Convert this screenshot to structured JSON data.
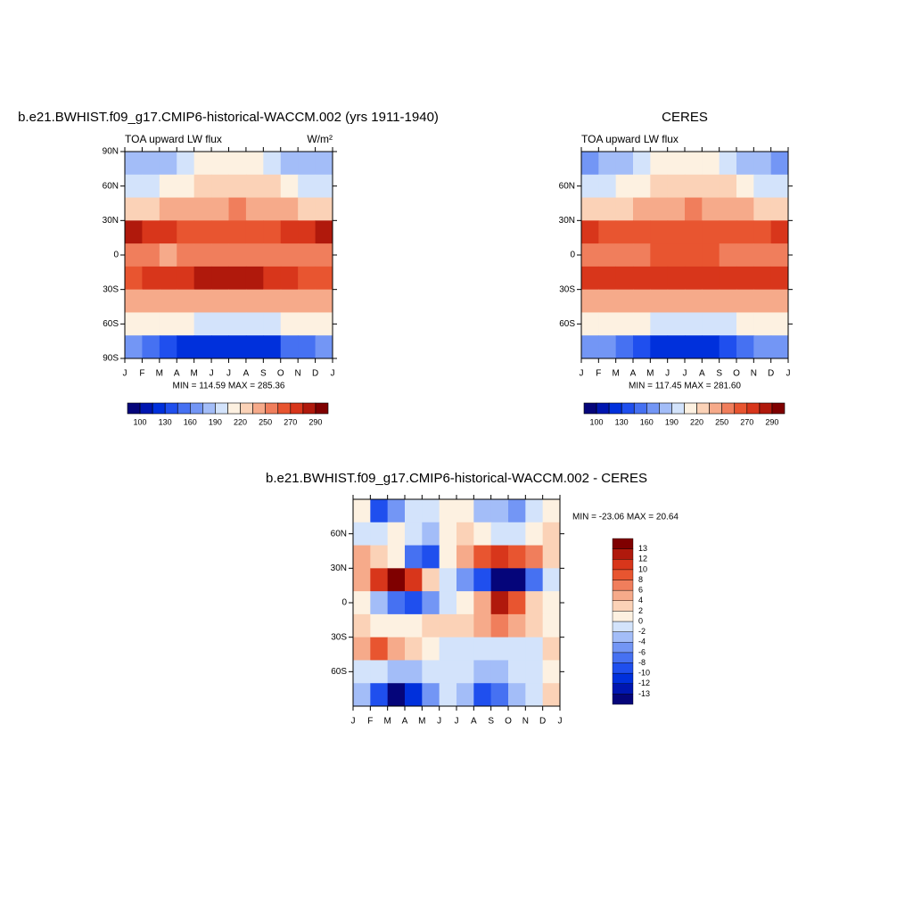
{
  "chart_data": [
    {
      "type": "contour",
      "title": "b.e21.BWHIST.f09_g17.CMIP6-historical-WACCM.002 (yrs 1911-1940)",
      "left_string": "TOA upward LW flux",
      "right_string": "W/m²",
      "min_max_label": "MIN = 114.59 MAX = 285.36",
      "categories": [
        "J",
        "F",
        "M",
        "A",
        "M",
        "J",
        "J",
        "A",
        "S",
        "O",
        "N",
        "D",
        "J"
      ],
      "lat": [
        80,
        60,
        40,
        20,
        0,
        -20,
        -40,
        -60,
        -80
      ],
      "ylim": [
        -90,
        90
      ],
      "yticks": [
        {
          "value": 90,
          "label": "90N"
        },
        {
          "value": 60,
          "label": "60N"
        },
        {
          "value": 30,
          "label": "30N"
        },
        0,
        {
          "value": -30,
          "label": "30S"
        },
        {
          "value": -60,
          "label": "60S"
        },
        {
          "value": -90,
          "label": "90S"
        }
      ],
      "z": [
        [
          175,
          178,
          185,
          195,
          205,
          212,
          215,
          210,
          200,
          188,
          178,
          175
        ],
        [
          200,
          202,
          208,
          215,
          222,
          228,
          230,
          228,
          220,
          210,
          203,
          200
        ],
        [
          232,
          233,
          236,
          240,
          244,
          248,
          250,
          248,
          244,
          238,
          234,
          232
        ],
        [
          280,
          278,
          272,
          268,
          264,
          262,
          262,
          263,
          266,
          270,
          276,
          280
        ],
        [
          252,
          250,
          248,
          250,
          254,
          258,
          258,
          256,
          254,
          252,
          252,
          252
        ],
        [
          268,
          270,
          272,
          276,
          282,
          286,
          286,
          284,
          278,
          272,
          268,
          266
        ],
        [
          244,
          245,
          246,
          245,
          243,
          242,
          242,
          243,
          244,
          246,
          246,
          245
        ],
        [
          210,
          210,
          208,
          205,
          200,
          196,
          195,
          196,
          200,
          205,
          208,
          210
        ],
        [
          165,
          155,
          140,
          128,
          120,
          116,
          115,
          118,
          128,
          145,
          158,
          165
        ]
      ],
      "levels": [
        100,
        115,
        130,
        145,
        160,
        175,
        190,
        205,
        220,
        235,
        250,
        260,
        270,
        280,
        290
      ],
      "colors": [
        "#05057a",
        "#0016b0",
        "#0030dc",
        "#1f4fee",
        "#4671f2",
        "#7396f5",
        "#a3bdf8",
        "#d3e3fb",
        "#fdf1e1",
        "#fbd2b7",
        "#f6aa8a",
        "#f07e5c",
        "#e85530",
        "#d8361b",
        "#b0190c",
        "#7f0000"
      ],
      "labelbar": "horizontal"
    },
    {
      "type": "contour",
      "title": "CERES",
      "left_string": "TOA upward LW flux",
      "min_max_label": "MIN = 117.45 MAX = 281.60",
      "categories": [
        "J",
        "F",
        "M",
        "A",
        "M",
        "J",
        "J",
        "A",
        "S",
        "O",
        "N",
        "D",
        "J"
      ],
      "lat": [
        80,
        60,
        40,
        20,
        0,
        -20,
        -40,
        -60,
        -80
      ],
      "ylim": [
        -90,
        90
      ],
      "yticks": [
        {
          "value": 60,
          "label": "60N"
        },
        {
          "value": 30,
          "label": "30N"
        },
        0,
        {
          "value": -30,
          "label": "30S"
        },
        {
          "value": -60,
          "label": "60S"
        }
      ],
      "z": [
        [
          172,
          176,
          185,
          197,
          207,
          214,
          216,
          211,
          200,
          186,
          176,
          172
        ],
        [
          198,
          200,
          207,
          215,
          223,
          230,
          232,
          229,
          220,
          208,
          200,
          198
        ],
        [
          230,
          231,
          234,
          239,
          244,
          249,
          251,
          249,
          244,
          237,
          232,
          230
        ],
        [
          272,
          268,
          262,
          260,
          262,
          266,
          268,
          266,
          262,
          262,
          266,
          272
        ],
        [
          258,
          256,
          254,
          256,
          260,
          264,
          265,
          262,
          258,
          256,
          256,
          258
        ],
        [
          270,
          272,
          272,
          272,
          274,
          278,
          279,
          276,
          272,
          270,
          270,
          270
        ],
        [
          242,
          243,
          244,
          244,
          244,
          243,
          243,
          243,
          244,
          245,
          245,
          243
        ],
        [
          212,
          212,
          210,
          206,
          201,
          197,
          196,
          197,
          201,
          206,
          210,
          212
        ],
        [
          168,
          160,
          145,
          132,
          124,
          120,
          118,
          121,
          130,
          148,
          162,
          168
        ]
      ],
      "levels": [
        100,
        115,
        130,
        145,
        160,
        175,
        190,
        205,
        220,
        235,
        250,
        260,
        270,
        280,
        290
      ],
      "colors": [
        "#05057a",
        "#0016b0",
        "#0030dc",
        "#1f4fee",
        "#4671f2",
        "#7396f5",
        "#a3bdf8",
        "#d3e3fb",
        "#fdf1e1",
        "#fbd2b7",
        "#f6aa8a",
        "#f07e5c",
        "#e85530",
        "#d8361b",
        "#b0190c",
        "#7f0000"
      ],
      "labelbar": "horizontal"
    },
    {
      "type": "contour",
      "title": "b.e21.BWHIST.f09_g17.CMIP6-historical-WACCM.002 - CERES",
      "min_max_label": "MIN = -23.06 MAX =  20.64",
      "categories": [
        "J",
        "F",
        "M",
        "A",
        "M",
        "J",
        "J",
        "A",
        "S",
        "O",
        "N",
        "D",
        "J"
      ],
      "lat": [
        80,
        60,
        40,
        20,
        0,
        -20,
        -40,
        -60,
        -80
      ],
      "ylim": [
        -90,
        90
      ],
      "yticks": [
        {
          "value": 60,
          "label": "60N"
        },
        {
          "value": 30,
          "label": "30N"
        },
        0,
        {
          "value": -30,
          "label": "30S"
        },
        {
          "value": -60,
          "label": "60S"
        }
      ],
      "z": [
        [
          0,
          -10,
          -6,
          -2,
          -2,
          0,
          0,
          -4,
          -4,
          -6,
          -2,
          0
        ],
        [
          -2,
          -2,
          0,
          -2,
          -4,
          0,
          2,
          0,
          -2,
          -2,
          0,
          2
        ],
        [
          4,
          2,
          0,
          -8,
          -10,
          0,
          4,
          8,
          10,
          8,
          6,
          2
        ],
        [
          4,
          10,
          14,
          10,
          2,
          -2,
          -6,
          -10,
          -14,
          -14,
          -8,
          -2
        ],
        [
          0,
          -4,
          -8,
          -10,
          -6,
          -2,
          0,
          4,
          12,
          8,
          2,
          0
        ],
        [
          2,
          0,
          0,
          0,
          2,
          2,
          2,
          4,
          6,
          4,
          2,
          0
        ],
        [
          4,
          8,
          4,
          2,
          0,
          -2,
          -2,
          -2,
          -2,
          -2,
          -2,
          2
        ],
        [
          -2,
          -2,
          -4,
          -4,
          -2,
          -2,
          -2,
          -4,
          -4,
          -2,
          -2,
          0
        ],
        [
          -4,
          -10,
          -14,
          -12,
          -6,
          -2,
          -4,
          -10,
          -8,
          -4,
          -2,
          2
        ]
      ],
      "levels": [
        -13,
        -12,
        -10,
        -8,
        -6,
        -4,
        -2,
        0,
        2,
        4,
        6,
        8,
        10,
        12,
        13
      ],
      "colors": [
        "#05057a",
        "#0016b0",
        "#0030dc",
        "#1f4fee",
        "#4671f2",
        "#7396f5",
        "#a3bdf8",
        "#d3e3fb",
        "#fdf1e1",
        "#fbd2b7",
        "#f6aa8a",
        "#f07e5c",
        "#e85530",
        "#d8361b",
        "#b0190c",
        "#7f0000"
      ],
      "labelbar": "vertical"
    }
  ]
}
